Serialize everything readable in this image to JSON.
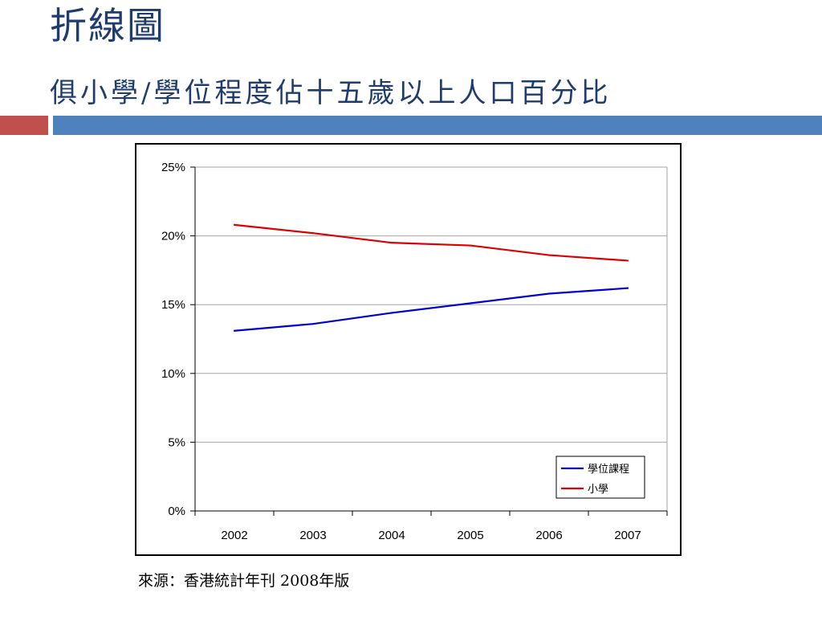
{
  "slide": {
    "title": "折線圖",
    "subtitle": "俱小學/學位程度佔十五歲以上人口百分比",
    "source": "來源：香港統計年刊 2008年版"
  },
  "colors": {
    "title": "#1f3c6e",
    "accent_red": "#c0504d",
    "accent_blue": "#4f81bd",
    "series_degree": "#0000cc",
    "series_primary": "#dd0000"
  },
  "chart_data": {
    "type": "line",
    "x": [
      "2002",
      "2003",
      "2004",
      "2005",
      "2006",
      "2007"
    ],
    "series": [
      {
        "name": "學位課程",
        "values": [
          13.1,
          13.6,
          14.4,
          15.1,
          15.8,
          16.2
        ],
        "color": "#0000cc"
      },
      {
        "name": "小學",
        "values": [
          20.8,
          20.2,
          19.5,
          19.3,
          18.6,
          18.2
        ],
        "color": "#dd0000"
      }
    ],
    "ylim": [
      0,
      25
    ],
    "yticks": [
      0,
      5,
      10,
      15,
      20,
      25
    ],
    "ytick_labels": [
      "0%",
      "5%",
      "10%",
      "15%",
      "20%",
      "25%"
    ],
    "grid": true,
    "legend_position": "bottom-right"
  }
}
